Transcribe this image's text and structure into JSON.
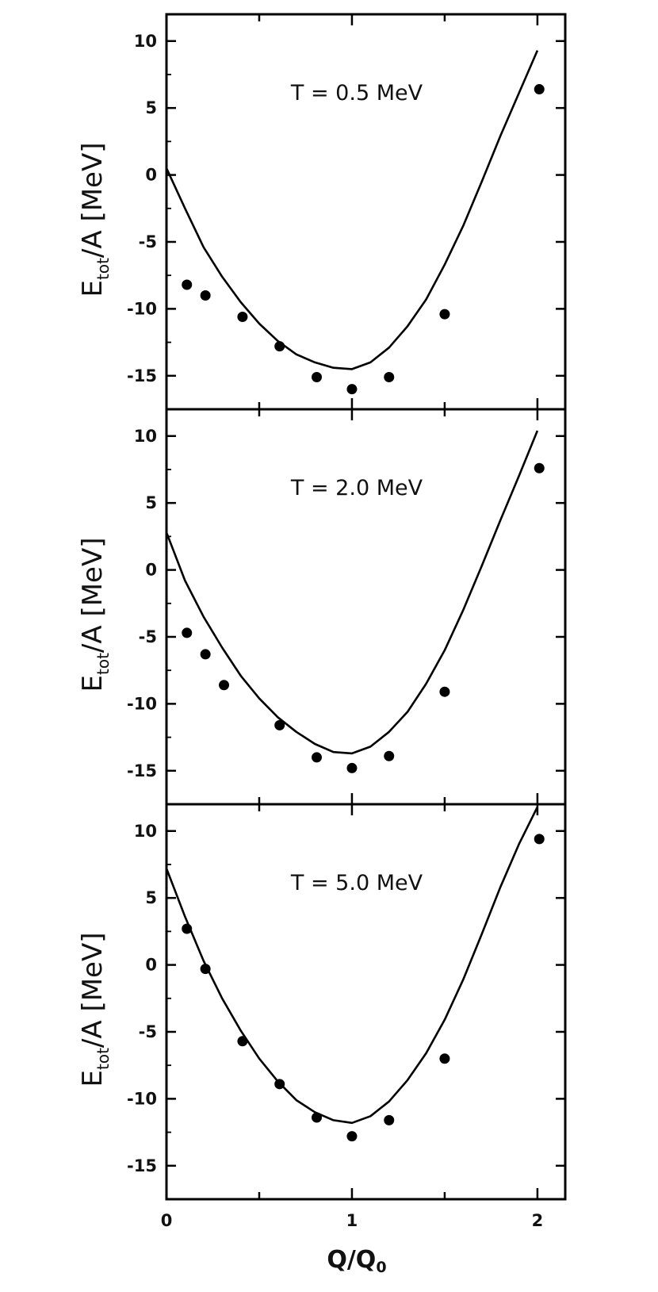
{
  "chart_data": {
    "type": "scatter",
    "x_tick_labels": [
      "0",
      "1",
      "2"
    ],
    "y_tick_labels": [
      "10",
      "5",
      "0",
      "-5",
      "-10",
      "-15"
    ],
    "xlim": [
      0,
      2.15
    ],
    "ylim": [
      -17.5,
      12
    ],
    "xlabel": {
      "base": "Q/Q",
      "sub": "0"
    },
    "ylabel": {
      "base": "E",
      "sub": "tot",
      "rest": "/A [MeV]"
    },
    "panels": [
      {
        "annotation": "T = 0.5 MeV",
        "curve": {
          "x": [
            0,
            0.1,
            0.2,
            0.3,
            0.4,
            0.5,
            0.6,
            0.7,
            0.8,
            0.9,
            1.0,
            1.1,
            1.2,
            1.3,
            1.4,
            1.5,
            1.6,
            1.7,
            1.8,
            1.9,
            2.0
          ],
          "y": [
            0.5,
            -2.5,
            -5.4,
            -7.6,
            -9.5,
            -11.1,
            -12.4,
            -13.4,
            -14.0,
            -14.4,
            -14.5,
            -14.0,
            -12.9,
            -11.3,
            -9.3,
            -6.7,
            -3.8,
            -0.5,
            2.9,
            6.1,
            9.3
          ]
        },
        "points": {
          "x": [
            0.11,
            0.21,
            0.41,
            0.61,
            0.81,
            1.0,
            1.2,
            1.5,
            2.01
          ],
          "y": [
            -8.2,
            -9.0,
            -10.6,
            -12.8,
            -15.1,
            -16.0,
            -15.1,
            -10.4,
            6.4
          ]
        }
      },
      {
        "annotation": "T = 2.0 MeV",
        "curve": {
          "x": [
            0,
            0.1,
            0.2,
            0.3,
            0.4,
            0.5,
            0.6,
            0.7,
            0.8,
            0.9,
            1.0,
            1.1,
            1.2,
            1.3,
            1.4,
            1.5,
            1.6,
            1.7,
            1.8,
            1.9,
            2.0
          ],
          "y": [
            2.8,
            -0.8,
            -3.5,
            -5.8,
            -7.9,
            -9.6,
            -11.0,
            -12.1,
            -13.0,
            -13.6,
            -13.7,
            -13.2,
            -12.1,
            -10.6,
            -8.5,
            -6.0,
            -3.0,
            0.3,
            3.7,
            7.0,
            10.4
          ]
        },
        "points": {
          "x": [
            0.11,
            0.21,
            0.31,
            0.61,
            0.81,
            1.0,
            1.2,
            1.5,
            2.01
          ],
          "y": [
            -4.7,
            -6.3,
            -8.6,
            -11.6,
            -14.0,
            -14.8,
            -13.9,
            -9.1,
            7.6
          ]
        }
      },
      {
        "annotation": "T = 5.0 MeV",
        "curve": {
          "x": [
            0,
            0.1,
            0.2,
            0.3,
            0.4,
            0.5,
            0.6,
            0.7,
            0.8,
            0.9,
            1.0,
            1.1,
            1.2,
            1.3,
            1.4,
            1.5,
            1.6,
            1.7,
            1.8,
            1.9,
            2.0
          ],
          "y": [
            7.2,
            3.6,
            0.3,
            -2.5,
            -4.9,
            -7.0,
            -8.7,
            -10.1,
            -11.0,
            -11.6,
            -11.8,
            -11.3,
            -10.2,
            -8.6,
            -6.6,
            -4.1,
            -1.1,
            2.3,
            5.8,
            9.0,
            11.8
          ]
        },
        "points": {
          "x": [
            0.11,
            0.21,
            0.41,
            0.61,
            0.81,
            1.0,
            1.2,
            1.5,
            2.01
          ],
          "y": [
            2.7,
            -0.3,
            -5.7,
            -8.9,
            -11.4,
            -12.8,
            -11.6,
            -7.0,
            9.4
          ]
        }
      }
    ]
  }
}
